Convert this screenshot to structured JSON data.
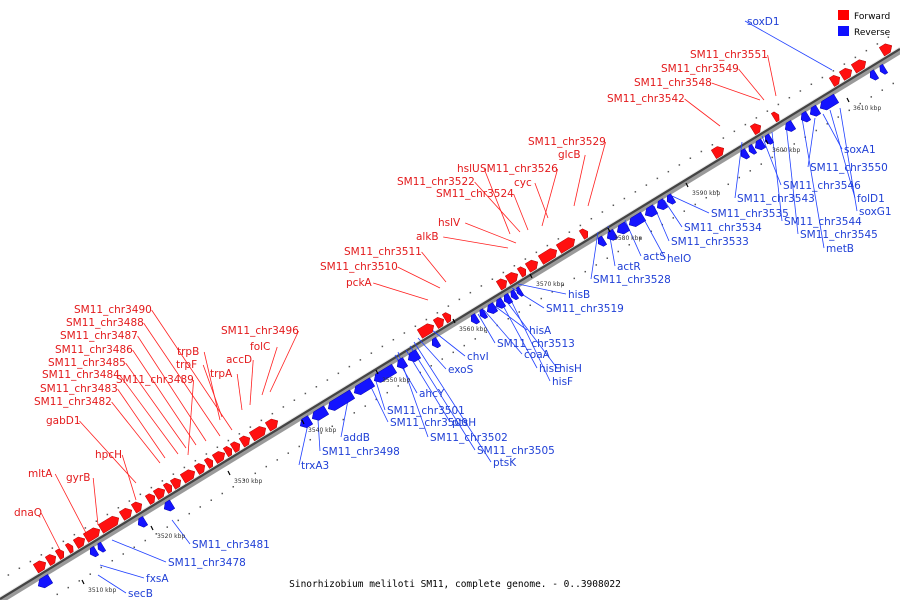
{
  "caption": "Sinorhizobium meliloti SM11, complete genome. - 0..3908022",
  "legend": {
    "forward": {
      "label": "Forward",
      "color": "#ff0000"
    },
    "reverse": {
      "label": "Reverse",
      "color": "#1010ff"
    }
  },
  "ticks": [
    "3510 kbp",
    "3520 kbp",
    "3530 kbp",
    "3540 kbp",
    "3550 kbp",
    "3560 kbp",
    "3570 kbp",
    "3580 kbp",
    "3590 kbp",
    "3600 kbp",
    "3610 kbp"
  ],
  "forward_labels": [
    "dnaQ",
    "mltA",
    "gyrB",
    "hpcH",
    "gabD1",
    "SM11_chr3482",
    "SM11_chr3483",
    "SM11_chr3484",
    "SM11_chr3485",
    "SM11_chr3486",
    "SM11_chr3487",
    "SM11_chr3488",
    "SM11_chr3490",
    "SM11_chr3489",
    "trpB",
    "trpF",
    "trpA",
    "accD",
    "folC",
    "SM11_chr3496",
    "pckA",
    "SM11_chr3510",
    "SM11_chr3511",
    "alkB",
    "hslV",
    "SM11_chr3522",
    "hslU",
    "SM11_chr3524",
    "SM11_chr3526",
    "cyc",
    "glcB",
    "SM11_chr3529",
    "SM11_chr3542",
    "SM11_chr3548",
    "SM11_chr3549",
    "SM11_chr3551"
  ],
  "reverse_labels": [
    "secB",
    "fxsA",
    "SM11_chr3478",
    "SM11_chr3481",
    "trxA3",
    "SM11_chr3498",
    "addB",
    "SM11_chr3500",
    "SM11_chr3501",
    "ahcY",
    "ptsH",
    "SM11_chr3502",
    "SM11_chr3505",
    "ptsK",
    "exoS",
    "chvI",
    "SM11_chr3513",
    "coaA",
    "hisA",
    "hisE",
    "hisH",
    "hisF",
    "SM11_chr3519",
    "hisB",
    "SM11_chr3528",
    "actR",
    "actS",
    "helO",
    "SM11_chr3533",
    "SM11_chr3534",
    "SM11_chr3535",
    "SM11_chr3543",
    "SM11_chr3546",
    "SM11_chr3544",
    "SM11_chr3545",
    "metB",
    "SM11_chr3550",
    "soxA1",
    "folD1",
    "soxG1",
    "soxD1"
  ]
}
